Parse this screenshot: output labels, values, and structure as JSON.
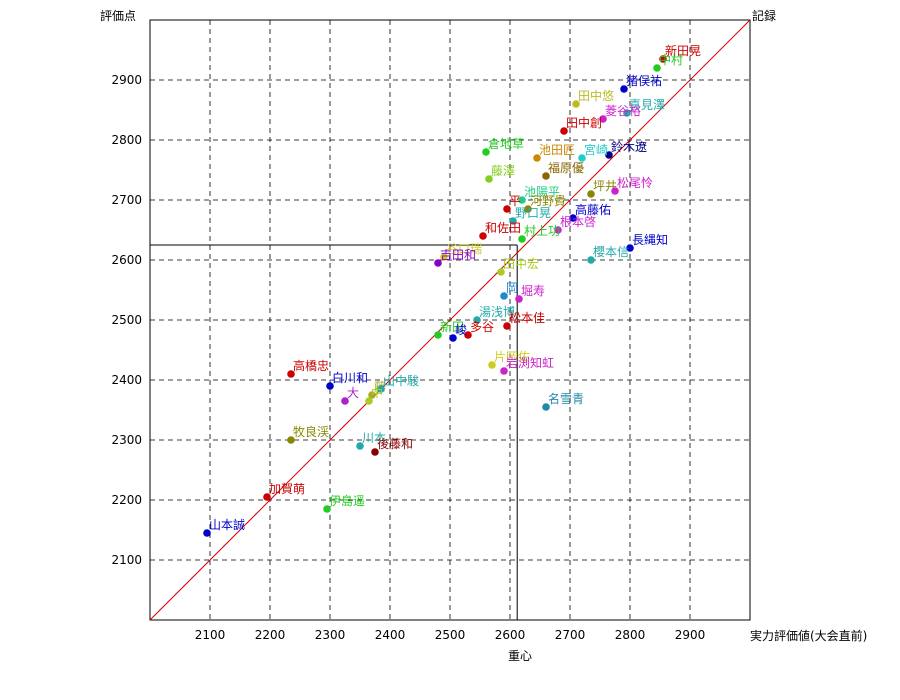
{
  "chart_data": {
    "type": "scatter",
    "title": "",
    "ylabel": "評価点",
    "y2label": "記録",
    "xlabel_right": "実力評価値(大会直前)",
    "xlabel_bottom": "重心",
    "xlim": [
      2000,
      3000
    ],
    "ylim": [
      2000,
      3000
    ],
    "xticks": [
      2100,
      2200,
      2300,
      2400,
      2500,
      2600,
      2700,
      2800,
      2900
    ],
    "yticks": [
      2100,
      2200,
      2300,
      2400,
      2500,
      2600,
      2700,
      2800,
      2900
    ],
    "grid": true,
    "diagonal": true,
    "reference": {
      "x": 2612,
      "y": 2625
    },
    "points": [
      {
        "label": "新田晃",
        "x": 2855,
        "y": 2935,
        "color": "#d00000"
      },
      {
        "label": "中村",
        "x": 2845,
        "y": 2920,
        "color": "#22cc22"
      },
      {
        "label": "猪俣祐",
        "x": 2790,
        "y": 2885,
        "color": "#0000cc"
      },
      {
        "label": "田中悠",
        "x": 2710,
        "y": 2860,
        "color": "#bbbb22"
      },
      {
        "label": "喜見澤",
        "x": 2795,
        "y": 2845,
        "color": "#22aaaa"
      },
      {
        "label": "菱谷裕",
        "x": 2755,
        "y": 2835,
        "color": "#cc22cc"
      },
      {
        "label": "田中創",
        "x": 2690,
        "y": 2815,
        "color": "#cc0000"
      },
      {
        "label": "鈴木遼",
        "x": 2765,
        "y": 2775,
        "color": "#000088"
      },
      {
        "label": "宮崎",
        "x": 2720,
        "y": 2770,
        "color": "#22cccc"
      },
      {
        "label": "池田匠",
        "x": 2645,
        "y": 2770,
        "color": "#cc8800"
      },
      {
        "label": "倉地草",
        "x": 2560,
        "y": 2780,
        "color": "#22cc22"
      },
      {
        "label": "福原優",
        "x": 2660,
        "y": 2740,
        "color": "#886600"
      },
      {
        "label": "藤澤",
        "x": 2565,
        "y": 2735,
        "color": "#88cc22"
      },
      {
        "label": "坪井",
        "x": 2735,
        "y": 2710,
        "color": "#888800"
      },
      {
        "label": "松尾怜",
        "x": 2775,
        "y": 2715,
        "color": "#cc22cc"
      },
      {
        "label": "池陽平",
        "x": 2620,
        "y": 2700,
        "color": "#22cc88"
      },
      {
        "label": "平",
        "x": 2595,
        "y": 2685,
        "color": "#cc0000"
      },
      {
        "label": "河野貴",
        "x": 2630,
        "y": 2685,
        "color": "#888800"
      },
      {
        "label": "高藤佑",
        "x": 2705,
        "y": 2670,
        "color": "#0000cc"
      },
      {
        "label": "野口晃",
        "x": 2605,
        "y": 2665,
        "color": "#22aaaa"
      },
      {
        "label": "根本啓",
        "x": 2680,
        "y": 2650,
        "color": "#cc22cc"
      },
      {
        "label": "和佐田",
        "x": 2555,
        "y": 2640,
        "color": "#cc0000"
      },
      {
        "label": "村上功",
        "x": 2620,
        "y": 2635,
        "color": "#22cc22"
      },
      {
        "label": "長縄知",
        "x": 2800,
        "y": 2620,
        "color": "#0000cc"
      },
      {
        "label": "櫻本信",
        "x": 2735,
        "y": 2600,
        "color": "#22aaaa"
      },
      {
        "label": "谷口瑞",
        "x": 2490,
        "y": 2605,
        "color": "#cccc22"
      },
      {
        "label": "吉田和",
        "x": 2480,
        "y": 2595,
        "color": "#8800cc"
      },
      {
        "label": "田中宏",
        "x": 2585,
        "y": 2580,
        "color": "#aacc22"
      },
      {
        "label": "岡",
        "x": 2590,
        "y": 2540,
        "color": "#2288cc"
      },
      {
        "label": "堀寿",
        "x": 2615,
        "y": 2535,
        "color": "#cc22cc"
      },
      {
        "label": "湯浅博",
        "x": 2545,
        "y": 2500,
        "color": "#22aaaa"
      },
      {
        "label": "松本佳",
        "x": 2595,
        "y": 2490,
        "color": "#cc0000"
      },
      {
        "label": "新田",
        "x": 2480,
        "y": 2475,
        "color": "#22cc22"
      },
      {
        "label": "多谷",
        "x": 2530,
        "y": 2475,
        "color": "#cc0000"
      },
      {
        "label": "峻",
        "x": 2505,
        "y": 2470,
        "color": "#0000cc"
      },
      {
        "label": "片岡佑",
        "x": 2570,
        "y": 2425,
        "color": "#cccc22"
      },
      {
        "label": "岩渕知虹",
        "x": 2590,
        "y": 2415,
        "color": "#cc22cc"
      },
      {
        "label": "高橋忠",
        "x": 2235,
        "y": 2410,
        "color": "#cc0000"
      },
      {
        "label": "白川和",
        "x": 2300,
        "y": 2390,
        "color": "#0000cc"
      },
      {
        "label": "大",
        "x": 2325,
        "y": 2365,
        "color": "#aa22cc"
      },
      {
        "label": "藤",
        "x": 2370,
        "y": 2375,
        "color": "#aaaa22"
      },
      {
        "label": "山中駿",
        "x": 2385,
        "y": 2385,
        "color": "#22aaaa"
      },
      {
        "label": "中",
        "x": 2365,
        "y": 2365,
        "color": "#aacc22"
      },
      {
        "label": "名雪青",
        "x": 2660,
        "y": 2355,
        "color": "#2288aa"
      },
      {
        "label": "牧良渓",
        "x": 2235,
        "y": 2300,
        "color": "#888800"
      },
      {
        "label": "川本",
        "x": 2350,
        "y": 2290,
        "color": "#22aaaa"
      },
      {
        "label": "後藤和",
        "x": 2375,
        "y": 2280,
        "color": "#880000"
      },
      {
        "label": "加賀萌",
        "x": 2195,
        "y": 2205,
        "color": "#cc0000"
      },
      {
        "label": "伊島遥",
        "x": 2295,
        "y": 2185,
        "color": "#22cc22"
      },
      {
        "label": "山本誠",
        "x": 2095,
        "y": 2145,
        "color": "#0000cc"
      }
    ]
  }
}
